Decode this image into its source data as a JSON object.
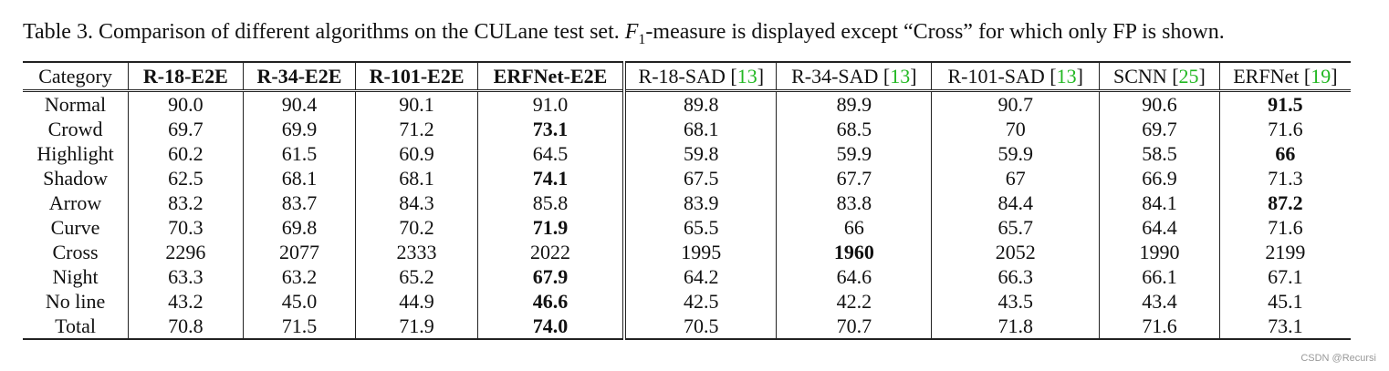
{
  "caption": {
    "before": "Table 3. Comparison of different algorithms on the CULane test set. ",
    "symbol": "F",
    "subscript": "1",
    "after": "-measure is displayed except “Cross” for which only FP is shown."
  },
  "table": {
    "header": [
      {
        "name": "Category",
        "bold": false
      },
      {
        "name": "R-18-E2E",
        "bold": true
      },
      {
        "name": "R-34-E2E",
        "bold": true
      },
      {
        "name": "R-101-E2E",
        "bold": true
      },
      {
        "name": "ERFNet-E2E",
        "bold": true
      },
      {
        "name": "R-18-SAD [",
        "cite": "13",
        "close": "]",
        "bold": false
      },
      {
        "name": "R-34-SAD [",
        "cite": "13",
        "close": "]",
        "bold": false
      },
      {
        "name": "R-101-SAD [",
        "cite": "13",
        "close": "]",
        "bold": false
      },
      {
        "name": "SCNN [",
        "cite": "25",
        "close": "]",
        "bold": false
      },
      {
        "name": "ERFNet [",
        "cite": "19",
        "close": "]",
        "bold": false
      }
    ],
    "rows": [
      {
        "label": "Normal",
        "cells": [
          "90.0",
          "90.4",
          "90.1",
          "91.0",
          "89.8",
          "89.9",
          "90.7",
          "90.6",
          "91.5"
        ],
        "bold": [
          8
        ]
      },
      {
        "label": "Crowd",
        "cells": [
          "69.7",
          "69.9",
          "71.2",
          "73.1",
          "68.1",
          "68.5",
          "70",
          "69.7",
          "71.6"
        ],
        "bold": [
          3
        ]
      },
      {
        "label": "Highlight",
        "cells": [
          "60.2",
          "61.5",
          "60.9",
          "64.5",
          "59.8",
          "59.9",
          "59.9",
          "58.5",
          "66"
        ],
        "bold": [
          8
        ]
      },
      {
        "label": "Shadow",
        "cells": [
          "62.5",
          "68.1",
          "68.1",
          "74.1",
          "67.5",
          "67.7",
          "67",
          "66.9",
          "71.3"
        ],
        "bold": [
          3
        ]
      },
      {
        "label": "Arrow",
        "cells": [
          "83.2",
          "83.7",
          "84.3",
          "85.8",
          "83.9",
          "83.8",
          "84.4",
          "84.1",
          "87.2"
        ],
        "bold": [
          8
        ]
      },
      {
        "label": "Curve",
        "cells": [
          "70.3",
          "69.8",
          "70.2",
          "71.9",
          "65.5",
          "66",
          "65.7",
          "64.4",
          "71.6"
        ],
        "bold": [
          3
        ]
      },
      {
        "label": "Cross",
        "cells": [
          "2296",
          "2077",
          "2333",
          "2022",
          "1995",
          "1960",
          "2052",
          "1990",
          "2199"
        ],
        "bold": [
          5
        ]
      },
      {
        "label": "Night",
        "cells": [
          "63.3",
          "63.2",
          "65.2",
          "67.9",
          "64.2",
          "64.6",
          "66.3",
          "66.1",
          "67.1"
        ],
        "bold": [
          3
        ]
      },
      {
        "label": "No line",
        "cells": [
          "43.2",
          "45.0",
          "44.9",
          "46.6",
          "42.5",
          "42.2",
          "43.5",
          "43.4",
          "45.1"
        ],
        "bold": [
          3
        ]
      },
      {
        "label": "Total",
        "cells": [
          "70.8",
          "71.5",
          "71.9",
          "74.0",
          "70.5",
          "70.7",
          "71.8",
          "71.6",
          "73.1"
        ],
        "bold": [
          3
        ]
      }
    ]
  },
  "watermark": "CSDN @Recursi"
}
